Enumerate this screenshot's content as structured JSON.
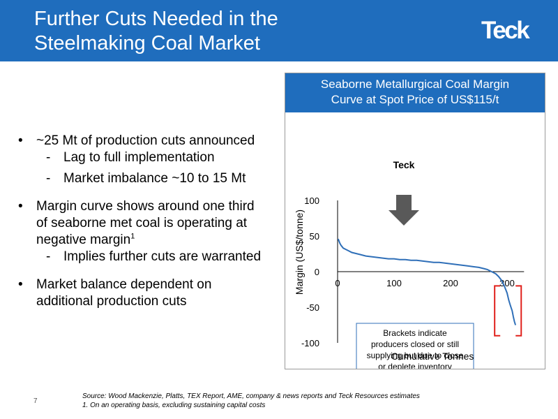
{
  "slide": {
    "title_line1": "Further Cuts Needed in the",
    "title_line2": "Steelmaking Coal Market",
    "logo": "Teck",
    "page_number": "7"
  },
  "bullets": [
    {
      "text": "~25 Mt of production cuts announced",
      "subs": [
        "Lag to full implementation",
        "Market imbalance ~10 to 15 Mt"
      ]
    },
    {
      "line1": "Margin curve shows around one third",
      "line2": "of seaborne met coal is operating at",
      "line3": "negative margin",
      "footnote_ref": "1",
      "subs": [
        "Implies further cuts are warranted"
      ]
    },
    {
      "line1": "Market balance dependent on",
      "line2": "additional production cuts"
    }
  ],
  "bullet_marker": "•",
  "sub_marker": "-",
  "footer": {
    "source": "Source: Wood Mackenzie,  Platts, TEX Report, AME, company & news reports and Teck Resources estimates",
    "note": "1. On an operating basis, excluding sustaining capital costs"
  },
  "chart_data": {
    "type": "line",
    "title_line1": "Seaborne Metallurgical Coal Margin",
    "title_line2": "Curve at Spot Price of US$115/t",
    "xlabel": "Cumulative Tonnes",
    "ylabel": "Margin (US$/tonne)",
    "xlim": [
      0,
      330
    ],
    "ylim": [
      -100,
      100
    ],
    "xticks": [
      0,
      100,
      200,
      300
    ],
    "yticks": [
      100,
      50,
      0,
      -50,
      -100
    ],
    "series": [
      {
        "color": "#2f6fb8",
        "x": [
          1,
          2,
          4,
          6,
          10,
          15,
          20,
          25,
          30,
          40,
          50,
          60,
          70,
          80,
          90,
          100,
          110,
          120,
          130,
          140,
          150,
          160,
          170,
          180,
          190,
          200,
          210,
          220,
          230,
          240,
          250,
          255,
          260,
          265,
          270,
          275,
          280,
          285,
          290,
          295,
          300,
          303,
          306,
          309,
          311,
          313,
          315
        ],
        "y": [
          46,
          44,
          40,
          37,
          33,
          31,
          29,
          27,
          26,
          24,
          22,
          21,
          20,
          19,
          18,
          18,
          17,
          17,
          16,
          16,
          15,
          14,
          13,
          13,
          12,
          11,
          10,
          9,
          8,
          7,
          6,
          5,
          4,
          3,
          1,
          -1,
          -3,
          -7,
          -12,
          -20,
          -30,
          -40,
          -48,
          -55,
          -63,
          -70,
          -75
        ]
      }
    ],
    "annotations": {
      "marker_label": "Teck",
      "marker_x": 100,
      "note_line1": "Brackets indicate",
      "note_line2": "producers closed or still",
      "note_line3": "supplying but due to close",
      "note_line4": "or deplete inventory",
      "bracket_x": [
        278,
        325
      ],
      "bracket_y": [
        -20,
        -90
      ]
    },
    "colors": {
      "marker": "#595959",
      "bracket": "#e0201b",
      "note_border": "#2f6fb8"
    },
    "grid": false
  }
}
